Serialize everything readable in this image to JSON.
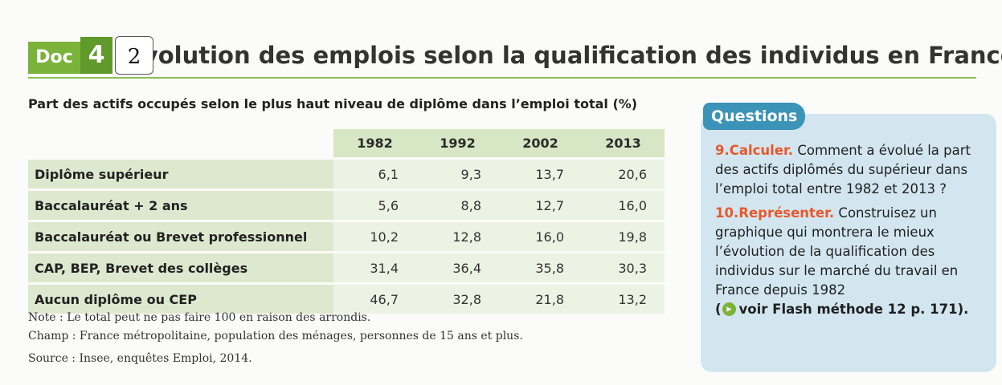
{
  "header": {
    "badge": "Doc",
    "number": "4",
    "marker": "2",
    "title": "Évolution des emplois selon la qualification des individus en France"
  },
  "table": {
    "caption": "Part des actifs occupés selon le plus haut niveau de diplôme dans l’emploi total (%)",
    "columns": [
      "1982",
      "1992",
      "2002",
      "2013"
    ],
    "rows": [
      [
        "Diplôme supérieur",
        "6,1",
        "9,3",
        "13,7",
        "20,6"
      ],
      [
        "Baccalauréat + 2 ans",
        "5,6",
        "8,8",
        "12,7",
        "16,0"
      ],
      [
        "Baccalauréat ou Brevet professionnel",
        "10,2",
        "12,8",
        "16,0",
        "19,8"
      ],
      [
        "CAP, BEP, Brevet des collèges",
        "31,4",
        "36,4",
        "35,8",
        "30,3"
      ],
      [
        "Aucun diplôme ou CEP",
        "46,7",
        "32,8",
        "21,8",
        "13,2"
      ]
    ]
  },
  "notes": [
    "Note : Le total peut ne pas faire 100 en raison des arrondis.",
    "Champ : France métropolitaine, population des ménages, personnes de 15 ans et plus.",
    "Source : Insee, enquêtes Emploi, 2014."
  ],
  "questions": {
    "title": "Questions",
    "items": [
      {
        "number": "9.",
        "verb": "Calculer.",
        "text": "Comment a évolué la part des actifs diplômés du supérieur dans l’emploi total entre 1982 et 2013 ?"
      },
      {
        "number": "10.",
        "verb": "Représenter.",
        "text": "Construisez un graphique qui montrera le mieux l’évolution de la qualification des individus sur le marché du travail en France depuis 1982",
        "link_open": "(",
        "link": "voir Flash méthode 12 p. 171)."
      }
    ]
  }
}
